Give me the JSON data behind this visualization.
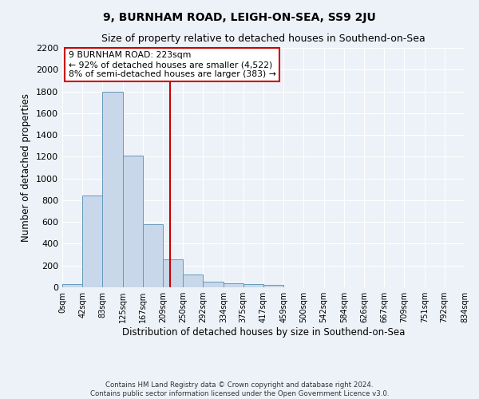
{
  "title": "9, BURNHAM ROAD, LEIGH-ON-SEA, SS9 2JU",
  "subtitle": "Size of property relative to detached houses in Southend-on-Sea",
  "xlabel": "Distribution of detached houses by size in Southend-on-Sea",
  "ylabel": "Number of detached properties",
  "bin_edges": [
    0,
    42,
    83,
    125,
    167,
    209,
    250,
    292,
    334,
    375,
    417,
    459,
    500,
    542,
    584,
    626,
    667,
    709,
    751,
    792,
    834
  ],
  "bar_heights": [
    30,
    840,
    1800,
    1210,
    580,
    255,
    120,
    50,
    35,
    30,
    20,
    0,
    0,
    0,
    0,
    0,
    0,
    0,
    0,
    0
  ],
  "bar_color": "#c8d8ea",
  "bar_edge_color": "#6699bb",
  "vline_x": 223,
  "vline_color": "#cc0000",
  "annotation_line1": "9 BURNHAM ROAD: 223sqm",
  "annotation_line2": "← 92% of detached houses are smaller (4,522)",
  "annotation_line3": "8% of semi-detached houses are larger (383) →",
  "annotation_box_color": "#cc0000",
  "ylim": [
    0,
    2200
  ],
  "yticks": [
    0,
    200,
    400,
    600,
    800,
    1000,
    1200,
    1400,
    1600,
    1800,
    2000,
    2200
  ],
  "tick_labels": [
    "0sqm",
    "42sqm",
    "83sqm",
    "125sqm",
    "167sqm",
    "209sqm",
    "250sqm",
    "292sqm",
    "334sqm",
    "375sqm",
    "417sqm",
    "459sqm",
    "500sqm",
    "542sqm",
    "584sqm",
    "626sqm",
    "667sqm",
    "709sqm",
    "751sqm",
    "792sqm",
    "834sqm"
  ],
  "footer_line1": "Contains HM Land Registry data © Crown copyright and database right 2024.",
  "footer_line2": "Contains public sector information licensed under the Open Government Licence v3.0.",
  "bg_color": "#edf2f8",
  "plot_bg_color": "#edf2f8"
}
